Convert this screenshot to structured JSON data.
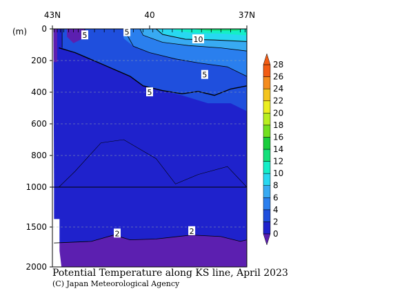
{
  "chart_data": {
    "type": "heatmap",
    "title": "Potential Temperature along KS line, April 2023",
    "credit": "(C) Japan Meteorological Agency",
    "y_unit": "(m)",
    "x_ticks": [
      "43N",
      "40",
      "37N"
    ],
    "x_range": [
      43,
      37
    ],
    "y_range": [
      0,
      2000
    ],
    "y_ticks_upper": [
      "0",
      "200",
      "400",
      "600",
      "800",
      "1000"
    ],
    "y_ticks_lower": [
      "1500",
      "2000"
    ],
    "y_axis_break": 1000,
    "colorbar": {
      "levels": [
        0,
        2,
        4,
        6,
        8,
        10,
        12,
        14,
        16,
        18,
        20,
        22,
        24,
        26,
        28
      ],
      "labels": [
        "0",
        "2",
        "4",
        "6",
        "8",
        "10",
        "12",
        "14",
        "16",
        "18",
        "20",
        "22",
        "24",
        "26",
        "28"
      ],
      "colors": [
        "#5c1fb0",
        "#1f22cc",
        "#1f4fdd",
        "#2a7fee",
        "#38aaf2",
        "#28d8f0",
        "#14eec8",
        "#14e07a",
        "#19cd3c",
        "#72e01e",
        "#b8ee1e",
        "#ecee1e",
        "#f4c41e",
        "#f48c1e",
        "#f25c14"
      ]
    },
    "contour_labels": [
      {
        "text": "5",
        "lat": 42.0,
        "depth": 40
      },
      {
        "text": "5",
        "lat": 40.7,
        "depth": 20
      },
      {
        "text": "10",
        "lat": 38.5,
        "depth": 65
      },
      {
        "text": "5",
        "lat": 38.3,
        "depth": 290
      },
      {
        "text": "5",
        "lat": 40.0,
        "depth": 400
      },
      {
        "text": "2",
        "lat": 41.0,
        "depth": 1580
      },
      {
        "text": "2",
        "lat": 38.7,
        "depth": 1550
      }
    ],
    "station_lats": [
      42.95,
      42.85,
      42.75,
      42.65,
      42.5,
      42.35,
      42.2,
      42.0,
      41.7,
      41.4,
      41.1,
      40.8,
      40.5,
      40.2,
      39.9,
      39.6,
      39.3,
      39.0,
      38.7,
      38.4,
      38.1,
      37.8,
      37.5,
      37.2,
      37.05
    ]
  }
}
